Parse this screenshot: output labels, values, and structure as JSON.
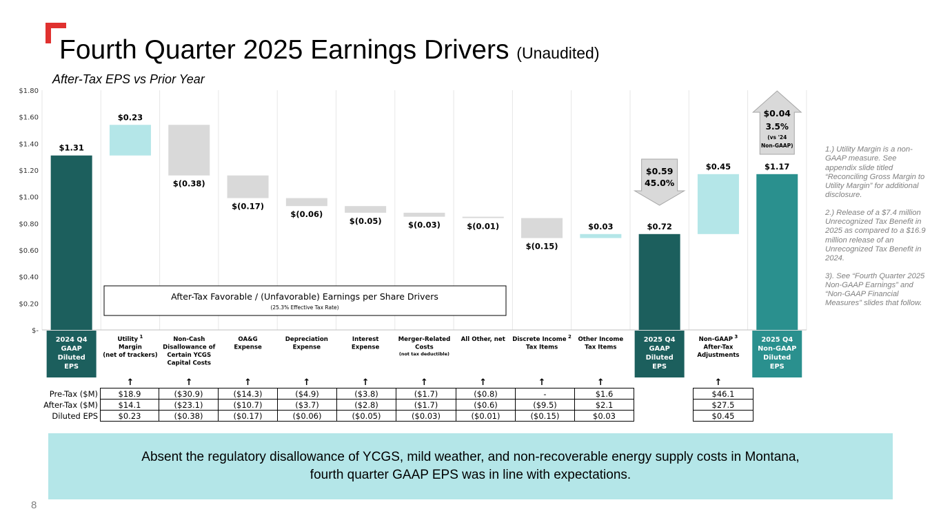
{
  "slide": {
    "title": "Fourth Quarter 2025 Earnings Drivers",
    "title_suffix": "(Unaudited)",
    "subtitle": "After-Tax EPS vs Prior Year",
    "page_number": "8",
    "banner": "Absent the regulatory disallowance of YCGS, mild weather, and non-recoverable energy supply costs in Montana, fourth quarter GAAP EPS was in line with expectations.",
    "colors": {
      "accent_red": "#e0312f",
      "dark_teal": "#1c5f5d",
      "teal": "#2a908e",
      "light_teal": "#b4e6e8",
      "gray": "#d9d9d9",
      "arrow_gray": "#d9d9d9"
    }
  },
  "chart_data": {
    "type": "waterfall",
    "title": "After-Tax EPS vs Prior Year",
    "ylim": [
      0,
      1.8
    ],
    "yticks": [
      {
        "v": 1.8,
        "label": "$1.80"
      },
      {
        "v": 1.6,
        "label": "$1.60"
      },
      {
        "v": 1.4,
        "label": "$1.40"
      },
      {
        "v": 1.2,
        "label": "$1.20"
      },
      {
        "v": 1.0,
        "label": "$1.00"
      },
      {
        "v": 0.8,
        "label": "$0.80"
      },
      {
        "v": 0.6,
        "label": "$0.60"
      },
      {
        "v": 0.4,
        "label": "$0.40"
      },
      {
        "v": 0.2,
        "label": "$0.20"
      },
      {
        "v": 0,
        "label": "$-"
      }
    ],
    "grid": true,
    "bars": [
      {
        "category": "2024 Q4 GAAP Diluted EPS",
        "lines": [
          "2024 Q4",
          "GAAP",
          "Diluted",
          "EPS"
        ],
        "sup": "",
        "kind": "total",
        "start": 0,
        "end": 1.31,
        "label": "$1.31",
        "color": "#1c5f5d",
        "cat_box": "#1c5f5d"
      },
      {
        "category": "Utility Margin (net of trackers)",
        "lines": [
          "Utility",
          "Margin",
          "(net of trackers)"
        ],
        "sup": "1",
        "kind": "up",
        "start": 1.31,
        "end": 1.54,
        "label": "$0.23",
        "color": "#b4e6e8"
      },
      {
        "category": "Non-Cash Disallowance of Certain YCGS Capital Costs",
        "lines": [
          "Non-Cash",
          "Disallowance of",
          "Certain YCGS",
          "Capital Costs"
        ],
        "sup": "",
        "kind": "down",
        "start": 1.54,
        "end": 1.16,
        "label": "$(0.38)",
        "color": "#d9d9d9"
      },
      {
        "category": "OA&G Expense",
        "lines": [
          "OA&G",
          "Expense"
        ],
        "sup": "",
        "kind": "down",
        "start": 1.16,
        "end": 0.99,
        "label": "$(0.17)",
        "color": "#d9d9d9"
      },
      {
        "category": "Depreciation Expense",
        "lines": [
          "Depreciation",
          "Expense"
        ],
        "sup": "",
        "kind": "down",
        "start": 0.99,
        "end": 0.93,
        "label": "$(0.06)",
        "color": "#d9d9d9"
      },
      {
        "category": "Interest Expense",
        "lines": [
          "Interest",
          "Expense"
        ],
        "sup": "",
        "kind": "down",
        "start": 0.93,
        "end": 0.88,
        "label": "$(0.05)",
        "color": "#d9d9d9"
      },
      {
        "category": "Merger-Related Costs (not tax deductible)",
        "lines": [
          "Merger-Related",
          "Costs"
        ],
        "small": "(not tax deductible)",
        "sup": "",
        "kind": "down",
        "start": 0.88,
        "end": 0.85,
        "label": "$(0.03)",
        "color": "#d9d9d9"
      },
      {
        "category": "All Other, net",
        "lines": [
          "All Other, net"
        ],
        "sup": "",
        "kind": "down",
        "start": 0.85,
        "end": 0.84,
        "label": "$(0.01)",
        "color": "#d9d9d9"
      },
      {
        "category": "Discrete Income Tax Items",
        "lines": [
          "Discrete Income",
          "Tax Items"
        ],
        "sup": "2",
        "kind": "down",
        "start": 0.84,
        "end": 0.69,
        "label": "$(0.15)",
        "color": "#d9d9d9"
      },
      {
        "category": "Other Income Tax Items",
        "lines": [
          "Other Income",
          "Tax Items"
        ],
        "sup": "",
        "kind": "up",
        "start": 0.69,
        "end": 0.72,
        "label": "$0.03",
        "color": "#b4e6e8"
      },
      {
        "category": "2025 Q4 GAAP Diluted EPS",
        "lines": [
          "2025 Q4",
          "GAAP",
          "Diluted",
          "EPS"
        ],
        "sup": "",
        "kind": "total",
        "start": 0,
        "end": 0.72,
        "label": "$0.72",
        "color": "#1c5f5d",
        "cat_box": "#1c5f5d"
      },
      {
        "category": "Non-GAAP After-Tax Adjustments",
        "lines": [
          "Non-GAAP",
          "After-Tax",
          "Adjustments"
        ],
        "sup": "3",
        "kind": "up",
        "start": 0.72,
        "end": 1.17,
        "label": "$0.45",
        "color": "#b4e6e8"
      },
      {
        "category": "2025 Q4 Non-GAAP Diluted EPS",
        "lines": [
          "2025 Q4",
          "Non-GAAP",
          "Diluted",
          "EPS"
        ],
        "sup": "",
        "kind": "total",
        "start": 0,
        "end": 1.17,
        "label": "$1.17",
        "color": "#2a908e",
        "cat_box": "#2a908e"
      }
    ],
    "callouts": [
      {
        "bar_index": 10,
        "direction": "down",
        "lines": [
          "$0.59",
          "45.0%"
        ]
      },
      {
        "bar_index": 12,
        "direction": "up",
        "lines": [
          "$0.04",
          "3.5%",
          "(vs '24",
          "Non-GAAP)"
        ]
      }
    ],
    "legend_box": {
      "title": "After-Tax Favorable / (Unfavorable) Earnings per Share Drivers",
      "subtitle": "(25.3% Effective Tax Rate)"
    }
  },
  "notes": [
    "1.) Utility Margin is a non-GAAP measure. See appendix slide titled “Reconciling Gross Margin to Utility Margin” for additional disclosure.",
    "2.) Release of a $7.4 million Unrecognized Tax Benefit in 2025 as compared to a $16.9 million release of an Unrecognized Tax Benefit in 2024.",
    "3). See “Fourth Quarter 2025 Non-GAAP Earnings” and “Non-GAAP Financial Measures” slides that follow."
  ],
  "table": {
    "arrow": "↑",
    "rows": [
      {
        "label": "Pre-Tax ($M)",
        "cells": [
          "$18.9",
          "($30.9)",
          "($14.3)",
          "($4.9)",
          "($3.8)",
          "($1.7)",
          "($0.8)",
          "-",
          "$1.6",
          "",
          "$46.1"
        ]
      },
      {
        "label": "After-Tax ($M)",
        "cells": [
          "$14.1",
          "($23.1)",
          "($10.7)",
          "($3.7)",
          "($2.8)",
          "($1.7)",
          "($0.6)",
          "($9.5)",
          "$2.1",
          "",
          "$27.5"
        ]
      },
      {
        "label": "Diluted EPS",
        "cells": [
          "$0.23",
          "($0.38)",
          "($0.17)",
          "($0.06)",
          "($0.05)",
          "($0.03)",
          "($0.01)",
          "($0.15)",
          "$0.03",
          "",
          "$0.45"
        ]
      }
    ]
  }
}
